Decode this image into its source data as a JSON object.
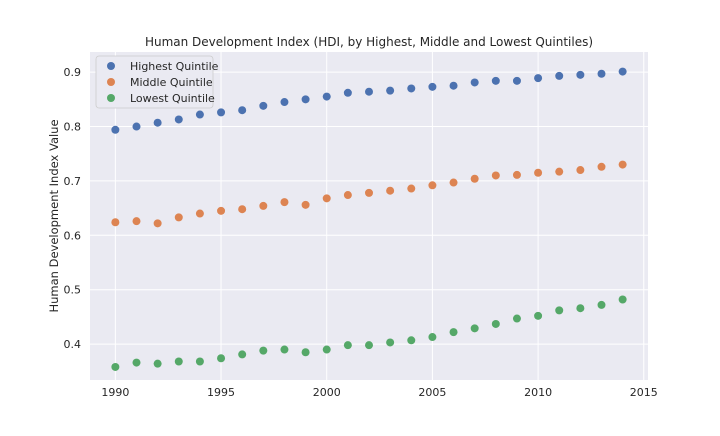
{
  "chart_data": {
    "type": "scatter",
    "title": "Human Development Index (HDI, by Highest, Middle and Lowest Quintiles)",
    "xlabel": "",
    "ylabel": "Human Development Index Value",
    "xlim": [
      1988.8,
      2015.2
    ],
    "ylim": [
      0.334,
      0.937
    ],
    "xticks": [
      1990,
      1995,
      2000,
      2005,
      2010,
      2015
    ],
    "yticks": [
      0.4,
      0.5,
      0.6,
      0.7,
      0.8,
      0.9
    ],
    "grid": true,
    "legend_position": "top-left",
    "x": [
      1990,
      1991,
      1992,
      1993,
      1994,
      1995,
      1996,
      1997,
      1998,
      1999,
      2000,
      2001,
      2002,
      2003,
      2004,
      2005,
      2006,
      2007,
      2008,
      2009,
      2010,
      2011,
      2012,
      2013,
      2014
    ],
    "series": [
      {
        "name": "Highest Quintile",
        "color": "#4c72b0",
        "values": [
          0.794,
          0.8,
          0.807,
          0.813,
          0.822,
          0.826,
          0.83,
          0.838,
          0.845,
          0.85,
          0.855,
          0.862,
          0.864,
          0.866,
          0.87,
          0.873,
          0.875,
          0.881,
          0.884,
          0.884,
          0.889,
          0.893,
          0.895,
          0.897,
          0.901
        ]
      },
      {
        "name": "Middle Quintile",
        "color": "#dd8452",
        "values": [
          0.624,
          0.626,
          0.622,
          0.633,
          0.64,
          0.645,
          0.648,
          0.654,
          0.661,
          0.656,
          0.668,
          0.674,
          0.678,
          0.682,
          0.686,
          0.692,
          0.697,
          0.704,
          0.71,
          0.711,
          0.715,
          0.717,
          0.72,
          0.726,
          0.73
        ]
      },
      {
        "name": "Lowest Quintile",
        "color": "#55a868",
        "values": [
          0.358,
          0.366,
          0.364,
          0.368,
          0.368,
          0.374,
          0.381,
          0.388,
          0.39,
          0.385,
          0.39,
          0.398,
          0.398,
          0.403,
          0.407,
          0.413,
          0.422,
          0.429,
          0.437,
          0.447,
          0.452,
          0.462,
          0.466,
          0.472,
          0.482
        ]
      }
    ]
  }
}
